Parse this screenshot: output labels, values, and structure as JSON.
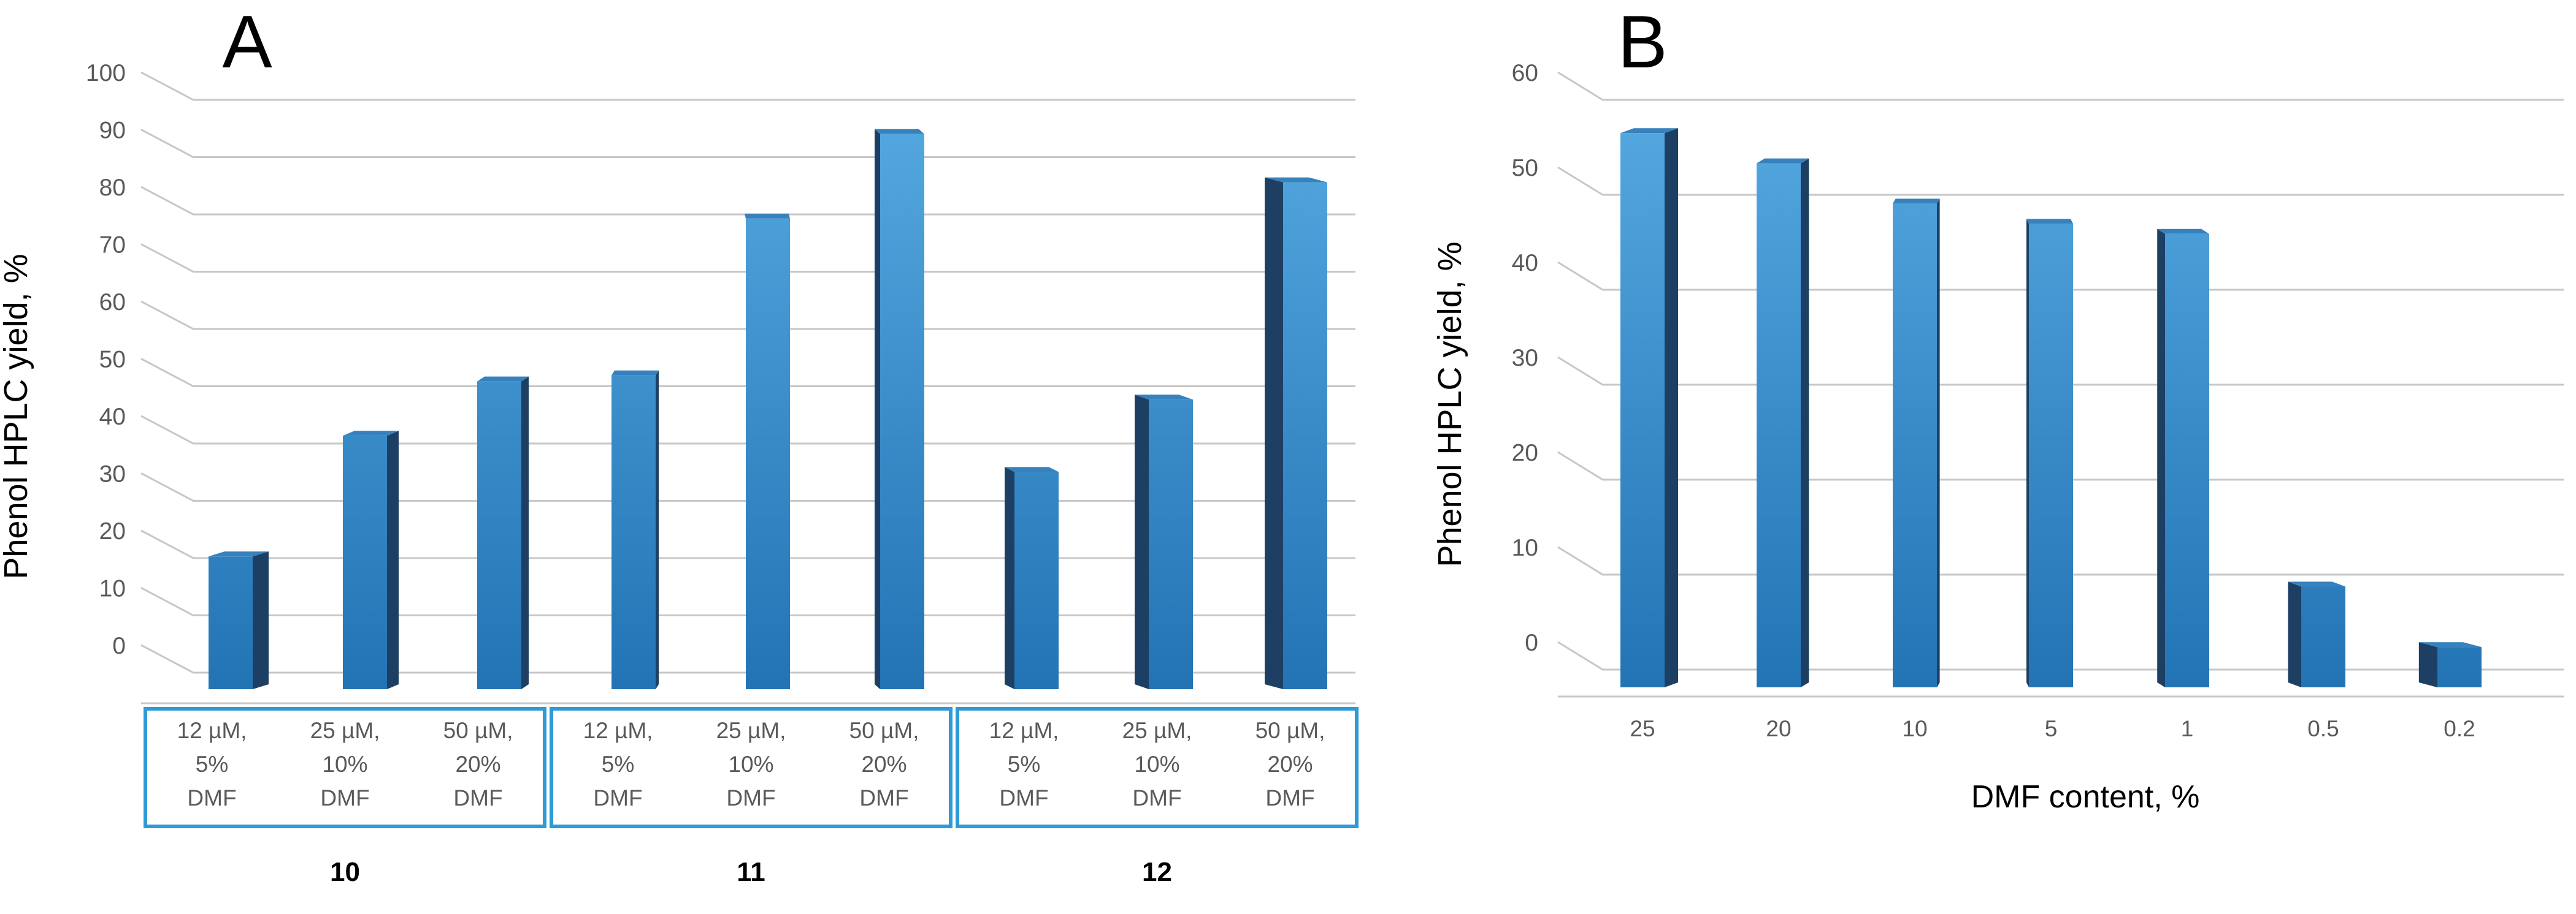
{
  "figure": {
    "description_colors": {
      "bar_gradient_top": "#55A9E0",
      "bar_gradient_bottom": "#2273B4",
      "bar_side_face": "#1D3F63",
      "bar_top_face": "#3781BC",
      "gridline": "#C7C7C7",
      "category_box_border": "#2E9BD6",
      "tick_text": "#595959",
      "title_text": "#000000"
    }
  },
  "chart_data": [
    {
      "type": "bar",
      "panel_label": "A",
      "title": "",
      "ylabel": "Phenol HPLC yield, %",
      "xlabel": "",
      "ylim": [
        0,
        100
      ],
      "yticks": [
        0,
        10,
        20,
        30,
        40,
        50,
        60,
        70,
        80,
        90,
        100
      ],
      "grid": true,
      "legend": "none",
      "style": "3d-column-perspective",
      "categories": [
        [
          "12 µM,",
          "5%",
          "DMF"
        ],
        [
          "25 µM,",
          "10%",
          "DMF"
        ],
        [
          "50 µM,",
          "20%",
          "DMF"
        ],
        [
          "12 µM,",
          "5%",
          "DMF"
        ],
        [
          "25 µM,",
          "10%",
          "DMF"
        ],
        [
          "50 µM,",
          "20%",
          "DMF"
        ],
        [
          "12 µM,",
          "5%",
          "DMF"
        ],
        [
          "25 µM,",
          "10%",
          "DMF"
        ],
        [
          "50 µM,",
          "20%",
          "DMF"
        ]
      ],
      "values": [
        22,
        42,
        51,
        52,
        78,
        92,
        36,
        48,
        84
      ],
      "group_labels": [
        "10",
        "11",
        "12"
      ]
    },
    {
      "type": "bar",
      "panel_label": "B",
      "title": "",
      "ylabel": "Phenol HPLC yield, %",
      "xlabel": "DMF content, %",
      "ylim": [
        0,
        60
      ],
      "yticks": [
        0,
        10,
        20,
        30,
        40,
        50,
        60
      ],
      "grid": true,
      "legend": "none",
      "style": "3d-column-perspective",
      "categories": [
        "25",
        "20",
        "10",
        "5",
        "1",
        "0.5",
        "0.2"
      ],
      "values": [
        55,
        52,
        48,
        46,
        45,
        10,
        4
      ]
    }
  ]
}
